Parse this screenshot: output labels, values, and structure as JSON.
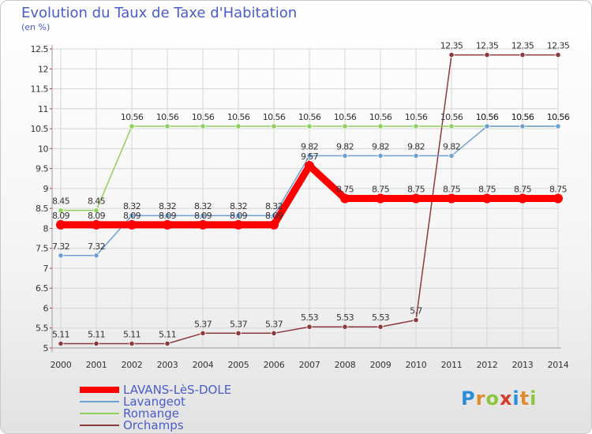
{
  "header": {
    "title": "Evolution du Taux de Taxe d'Habitation",
    "subtitle": "(en %)"
  },
  "chart_data": {
    "type": "line",
    "title": "Evolution du Taux de Taxe d'Habitation",
    "ylabel": "(en %)",
    "xlabel": "",
    "x": [
      "2000",
      "2001",
      "2002",
      "2003",
      "2004",
      "2005",
      "2006",
      "2007",
      "2008",
      "2009",
      "2010",
      "2011",
      "2012",
      "2013",
      "2014"
    ],
    "ylim": [
      5,
      12.5
    ],
    "yticks": [
      "5",
      "5.5",
      "6",
      "6.5",
      "7",
      "7.5",
      "8",
      "8.5",
      "9",
      "9.5",
      "10",
      "10.5",
      "11",
      "11.5",
      "12",
      "12.5"
    ],
    "grid": true,
    "legend_position": "bottom-left",
    "series": [
      {
        "name": "LAVANS-LèS-DOLE",
        "color": "#ff0000",
        "values": [
          8.09,
          8.09,
          8.09,
          8.09,
          8.09,
          8.09,
          8.09,
          9.57,
          8.75,
          8.75,
          8.75,
          8.75,
          8.75,
          8.75,
          8.75
        ],
        "labels": [
          "8.09",
          "8.09",
          "8.09",
          "8.09",
          "8.09",
          "8.09",
          "8.09",
          "9.57",
          "8.75",
          "8.75",
          "8.75",
          "8.75",
          "8.75",
          "8.75",
          "8.75"
        ]
      },
      {
        "name": "Lavangeot",
        "color": "#6fa0d2",
        "values": [
          7.32,
          7.32,
          8.32,
          8.32,
          8.32,
          8.32,
          8.32,
          9.82,
          9.82,
          9.82,
          9.82,
          9.82,
          10.56,
          10.56,
          10.56
        ],
        "labels": [
          "7.32",
          "7.32",
          "8.32",
          "8.32",
          "8.32",
          "8.32",
          "8.32",
          "9.82",
          "9.82",
          "9.82",
          "9.82",
          "9.82",
          "10.56",
          "10.56",
          "10.56"
        ]
      },
      {
        "name": "Romange",
        "color": "#8ed05a",
        "values": [
          8.45,
          8.45,
          10.56,
          10.56,
          10.56,
          10.56,
          10.56,
          10.56,
          10.56,
          10.56,
          10.56,
          10.56,
          10.56,
          10.56,
          10.56
        ],
        "labels": [
          "8.45",
          "8.45",
          "10.56",
          "10.56",
          "10.56",
          "10.56",
          "10.56",
          "10.56",
          "10.56",
          "10.56",
          "10.56",
          "10.56",
          "10.56",
          "10.56",
          "10.56"
        ]
      },
      {
        "name": "Orchamps",
        "color": "#8b3a3a",
        "values": [
          5.11,
          5.11,
          5.11,
          5.11,
          5.37,
          5.37,
          5.37,
          5.53,
          5.53,
          5.53,
          5.7,
          12.35,
          12.35,
          12.35,
          12.35
        ],
        "labels": [
          "5.11",
          "5.11",
          "5.11",
          "5.11",
          "5.37",
          "5.37",
          "5.37",
          "5.53",
          "5.53",
          "5.53",
          "5.7",
          "12.35",
          "12.35",
          "12.35",
          "12.35"
        ]
      }
    ]
  },
  "logo": {
    "letters": [
      "P",
      "r",
      "o",
      "x",
      "i",
      "t",
      "i"
    ],
    "colors": [
      "#2a8fd8",
      "#e08a2a",
      "#8cc63f",
      "#d83a2a",
      "#2a8fd8",
      "#e08a2a",
      "#8cc63f"
    ]
  }
}
